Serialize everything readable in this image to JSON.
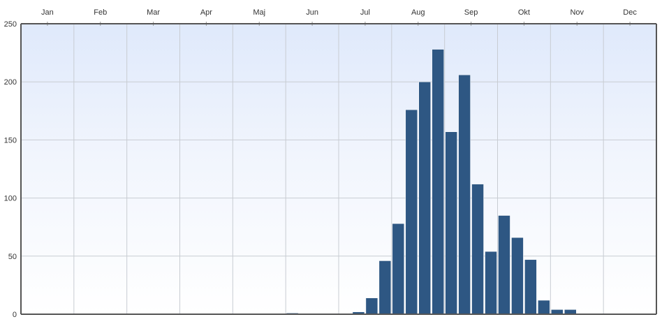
{
  "chart_data": {
    "type": "bar",
    "title": "",
    "xlabel": "",
    "ylabel": "",
    "month_labels": [
      "Jan",
      "Feb",
      "Mar",
      "Apr",
      "Maj",
      "Jun",
      "Jul",
      "Aug",
      "Sep",
      "Okt",
      "Nov",
      "Dec"
    ],
    "x_axis_position": "top",
    "grid": true,
    "legend": "none",
    "ylim": [
      0,
      250
    ],
    "y_ticks": [
      0,
      50,
      100,
      150,
      200,
      250
    ],
    "bar_color": "#2e5783",
    "values": [
      0,
      0,
      0,
      0,
      0,
      0,
      0,
      0,
      0,
      0,
      0,
      0,
      0,
      0,
      0,
      0,
      0,
      0,
      0,
      0,
      1,
      0,
      0,
      0,
      0,
      2,
      14,
      46,
      78,
      176,
      200,
      228,
      157,
      206,
      112,
      54,
      85,
      66,
      47,
      12,
      4,
      4,
      0,
      0,
      0,
      0,
      0,
      0
    ]
  }
}
